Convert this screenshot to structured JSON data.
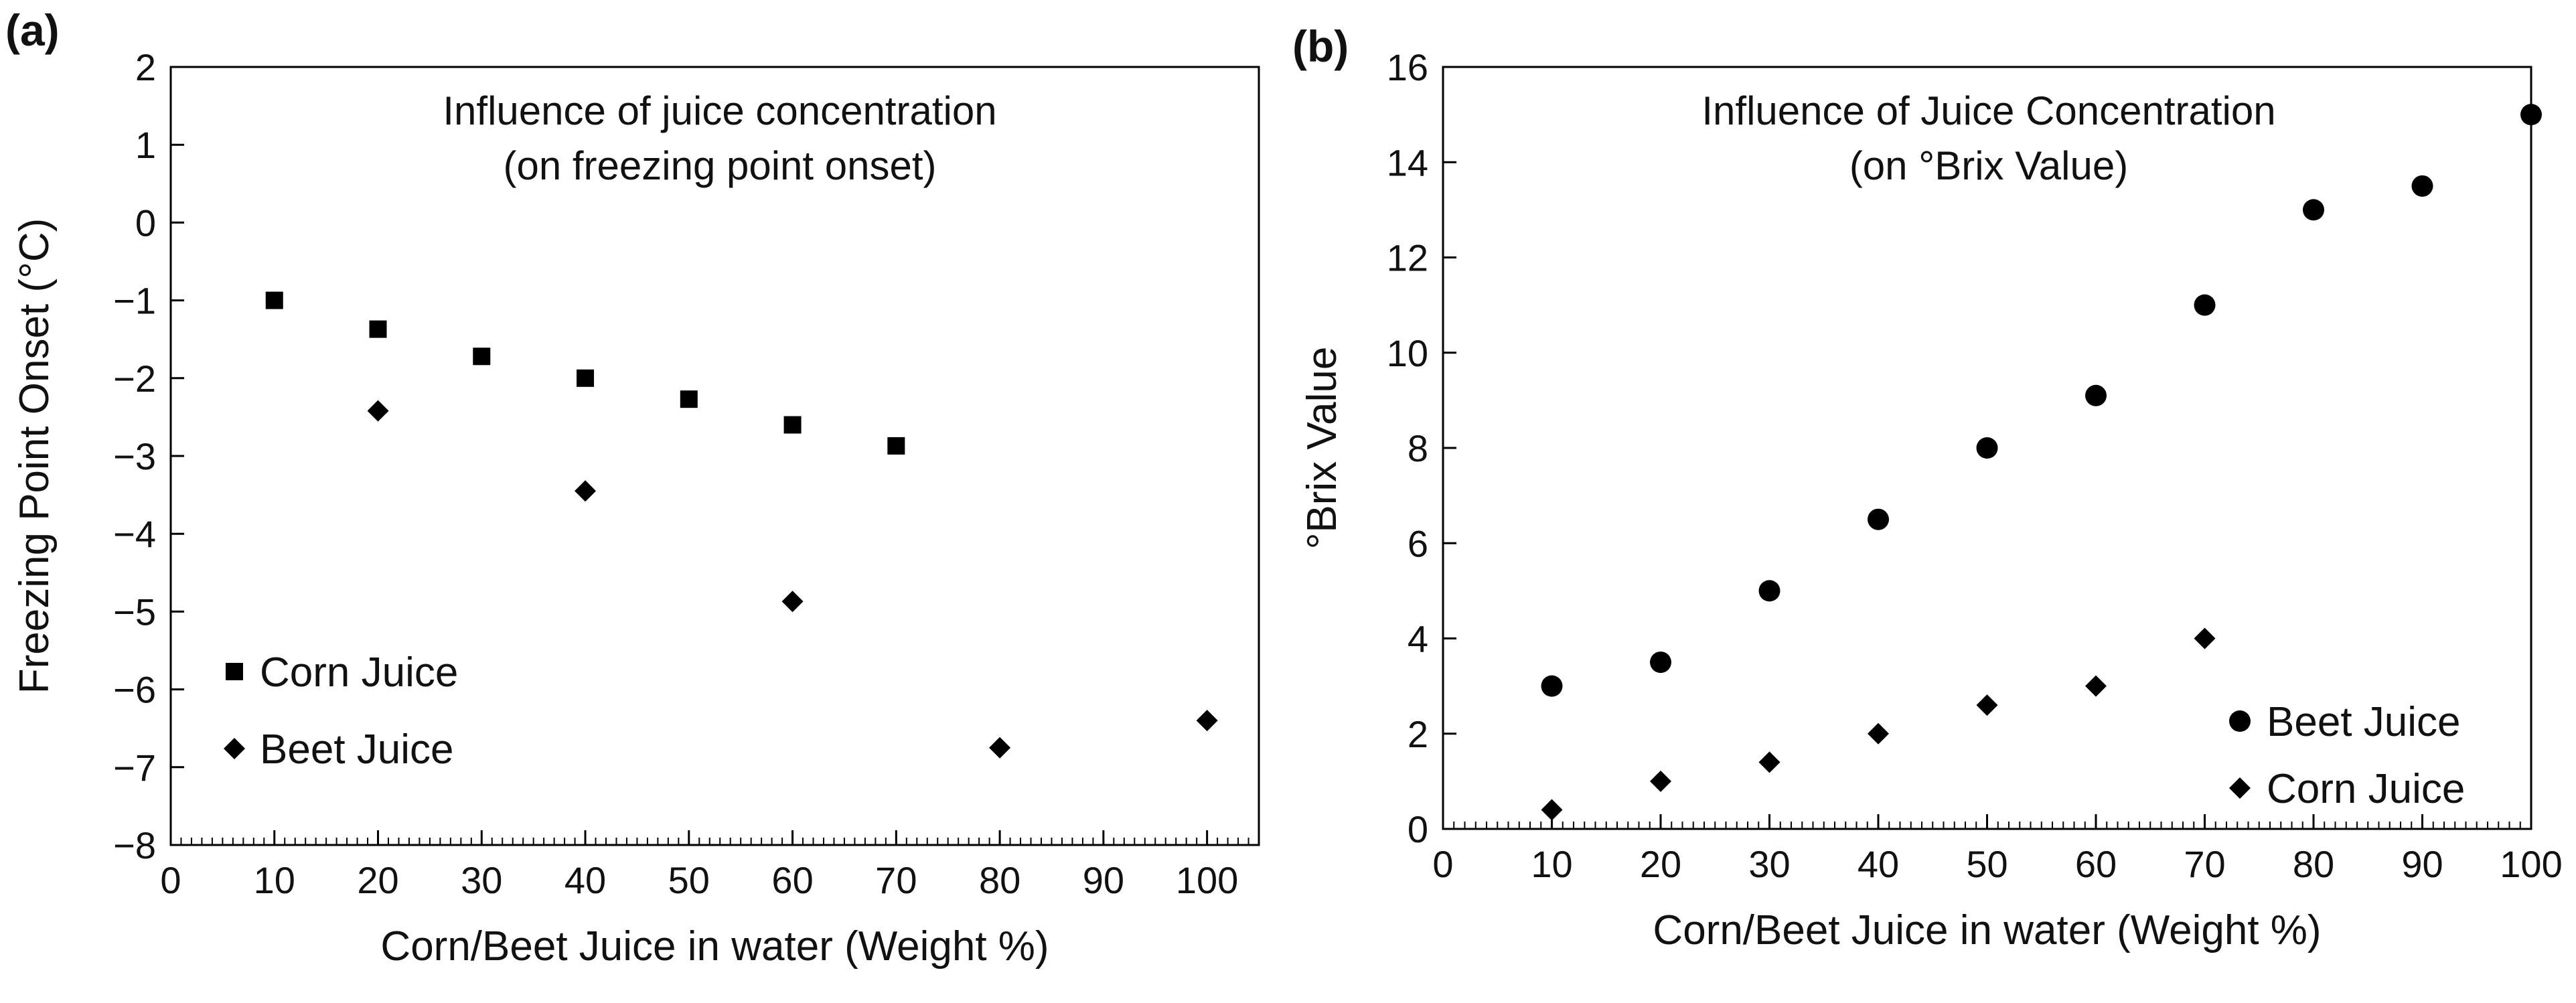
{
  "chart_data": [
    {
      "panel_label": "(a)",
      "type": "scatter",
      "annotation": [
        "Influence of juice concentration",
        "(on freezing point onset)"
      ],
      "xlabel": "Corn/Beet Juice in water (Weight %)",
      "ylabel": "Freezing Point Onset (°C)",
      "xlim": [
        0,
        105
      ],
      "ylim": [
        -8,
        2
      ],
      "xticks": [
        "0",
        "10",
        "20",
        "30",
        "40",
        "50",
        "60",
        "70",
        "80",
        "90",
        "100"
      ],
      "yticks": [
        "−8",
        "−7",
        "−6",
        "−5",
        "−4",
        "−3",
        "−2",
        "−1",
        "0",
        "1",
        "2"
      ],
      "legend_position": "bottom-left",
      "series": [
        {
          "name": "Corn Juice",
          "marker": "square",
          "x": [
            10,
            20,
            30,
            40,
            50,
            60,
            70
          ],
          "y": [
            -1.0,
            -1.37,
            -1.72,
            -2.0,
            -2.27,
            -2.6,
            -2.87
          ]
        },
        {
          "name": "Beet Juice",
          "marker": "diamond",
          "x": [
            20,
            40,
            60,
            80,
            100
          ],
          "y": [
            -2.42,
            -3.45,
            -4.87,
            -6.75,
            -6.4
          ]
        }
      ]
    },
    {
      "panel_label": "(b)",
      "type": "scatter",
      "annotation": [
        "Influence of Juice Concentration",
        "(on °Brix Value)"
      ],
      "xlabel": "Corn/Beet Juice in water (Weight %)",
      "ylabel": "°Brix Value",
      "xlim": [
        0,
        100
      ],
      "ylim": [
        0,
        16
      ],
      "xticks": [
        "0",
        "10",
        "20",
        "30",
        "40",
        "50",
        "60",
        "70",
        "80",
        "90",
        "100"
      ],
      "yticks": [
        "0",
        "2",
        "4",
        "6",
        "8",
        "10",
        "12",
        "14",
        "16"
      ],
      "legend_position": "bottom-right",
      "series": [
        {
          "name": "Beet Juice",
          "marker": "circle",
          "x": [
            10,
            20,
            30,
            40,
            50,
            60,
            70,
            80,
            90,
            100
          ],
          "y": [
            3.0,
            3.5,
            5.0,
            6.5,
            8.0,
            9.1,
            11.0,
            13.0,
            13.5,
            15.0
          ]
        },
        {
          "name": "Corn Juice",
          "marker": "diamond",
          "x": [
            10,
            20,
            30,
            40,
            50,
            60,
            70
          ],
          "y": [
            0.4,
            1.0,
            1.4,
            2.0,
            2.6,
            3.0,
            4.0
          ]
        }
      ]
    }
  ]
}
